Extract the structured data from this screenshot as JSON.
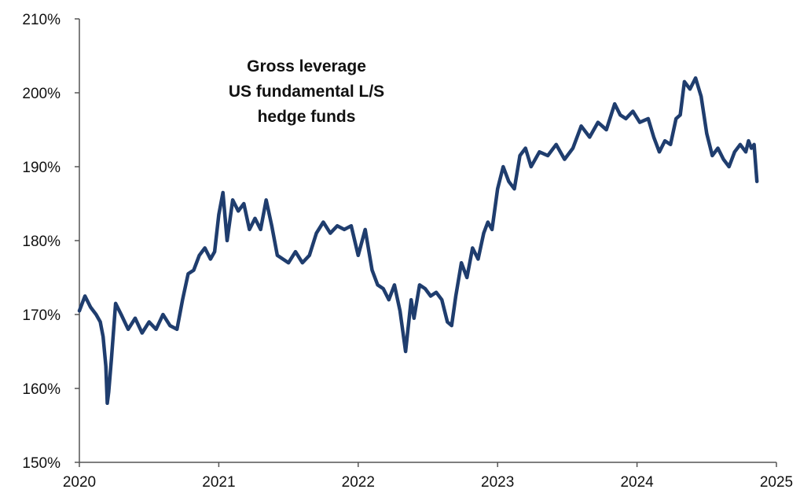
{
  "chart_data": {
    "type": "line",
    "title": [
      "Gross leverage",
      "US fundamental L/S",
      "hedge funds"
    ],
    "xlabel": "",
    "ylabel": "",
    "xlim": [
      2020,
      2025
    ],
    "ylim": [
      150,
      210
    ],
    "x_ticks": [
      "2020",
      "2021",
      "2022",
      "2023",
      "2024",
      "2025"
    ],
    "y_ticks": [
      "150%",
      "160%",
      "170%",
      "180%",
      "190%",
      "200%",
      "210%"
    ],
    "grid": false,
    "legend": "none",
    "colors": {
      "line": "#1f3d6e",
      "axis": "#555555"
    },
    "series": [
      {
        "x": [
          2020.0,
          2020.04,
          2020.08,
          2020.12,
          2020.15,
          2020.17,
          2020.19,
          2020.2,
          2020.21,
          2020.23,
          2020.26,
          2020.3,
          2020.35,
          2020.4,
          2020.45,
          2020.5,
          2020.55,
          2020.6,
          2020.65,
          2020.7,
          2020.74,
          2020.78,
          2020.82,
          2020.86,
          2020.9,
          2020.94,
          2020.97,
          2021.0,
          2021.03,
          2021.06,
          2021.1,
          2021.14,
          2021.18,
          2021.22,
          2021.26,
          2021.3,
          2021.34,
          2021.38,
          2021.42,
          2021.46,
          2021.5,
          2021.55,
          2021.6,
          2021.65,
          2021.7,
          2021.75,
          2021.8,
          2021.85,
          2021.9,
          2021.95,
          2022.0,
          2022.05,
          2022.1,
          2022.14,
          2022.18,
          2022.22,
          2022.26,
          2022.3,
          2022.34,
          2022.38,
          2022.4,
          2022.44,
          2022.48,
          2022.52,
          2022.56,
          2022.6,
          2022.64,
          2022.67,
          2022.7,
          2022.74,
          2022.78,
          2022.82,
          2022.86,
          2022.9,
          2022.93,
          2022.96,
          2023.0,
          2023.04,
          2023.08,
          2023.12,
          2023.16,
          2023.2,
          2023.24,
          2023.3,
          2023.36,
          2023.42,
          2023.48,
          2023.54,
          2023.6,
          2023.66,
          2023.72,
          2023.78,
          2023.84,
          2023.88,
          2023.92,
          2023.97,
          2024.02,
          2024.08,
          2024.12,
          2024.16,
          2024.2,
          2024.24,
          2024.28,
          2024.31,
          2024.34,
          2024.38,
          2024.42,
          2024.46,
          2024.5,
          2024.54,
          2024.58,
          2024.62,
          2024.66,
          2024.7,
          2024.74,
          2024.78,
          2024.8,
          2024.82,
          2024.84,
          2024.86
        ],
        "y": [
          170.5,
          172.5,
          171.0,
          170.0,
          169.0,
          167.0,
          163.0,
          158.0,
          159.5,
          164.0,
          171.5,
          170.0,
          168.0,
          169.5,
          167.5,
          169.0,
          168.0,
          170.0,
          168.5,
          168.0,
          172.0,
          175.5,
          176.0,
          178.0,
          179.0,
          177.5,
          178.5,
          183.5,
          186.5,
          180.0,
          185.5,
          184.0,
          185.0,
          181.5,
          183.0,
          181.5,
          185.5,
          182.0,
          178.0,
          177.5,
          177.0,
          178.5,
          177.0,
          178.0,
          181.0,
          182.5,
          181.0,
          182.0,
          181.5,
          182.0,
          178.0,
          181.5,
          176.0,
          174.0,
          173.5,
          172.0,
          174.0,
          170.5,
          165.0,
          172.0,
          169.5,
          174.0,
          173.5,
          172.5,
          173.0,
          172.0,
          169.0,
          168.5,
          172.5,
          177.0,
          175.0,
          179.0,
          177.5,
          181.0,
          182.5,
          181.5,
          187.0,
          190.0,
          188.0,
          187.0,
          191.5,
          192.5,
          190.0,
          192.0,
          191.5,
          193.0,
          191.0,
          192.5,
          195.5,
          194.0,
          196.0,
          195.0,
          198.5,
          197.0,
          196.5,
          197.5,
          196.0,
          196.5,
          194.0,
          192.0,
          193.5,
          193.0,
          196.5,
          197.0,
          201.5,
          200.5,
          202.0,
          199.5,
          194.5,
          191.5,
          192.5,
          191.0,
          190.0,
          192.0,
          193.0,
          192.0,
          193.5,
          192.5,
          193.0,
          188.0
        ]
      }
    ]
  }
}
